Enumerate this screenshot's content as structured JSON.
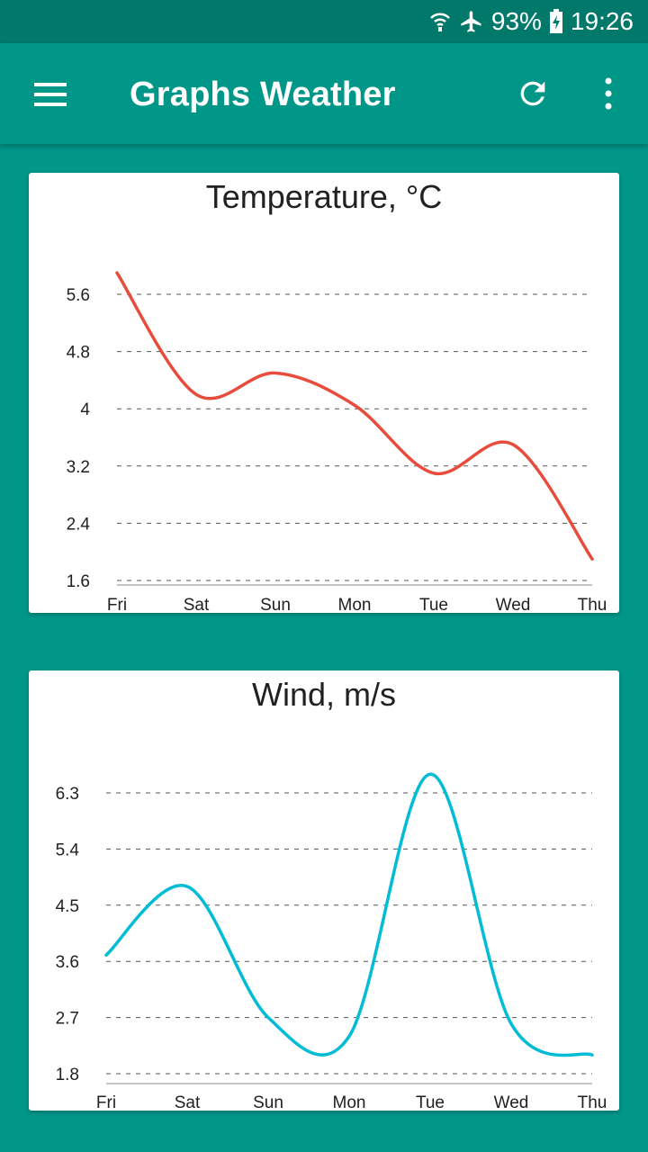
{
  "status_bar": {
    "battery": "93%",
    "time": "19:26",
    "icons": [
      "wifi-icon",
      "airplane-icon",
      "battery-charging-icon"
    ]
  },
  "app_bar": {
    "title": "Graphs Weather",
    "icons": [
      "menu-icon",
      "refresh-icon",
      "more-vert-icon"
    ]
  },
  "colors": {
    "primary": "#009688",
    "primary_dark": "#00796B",
    "temperature_line": "#E74C3C",
    "wind_line": "#00BCD4"
  },
  "chart_data": [
    {
      "type": "line",
      "title": "Temperature, °C",
      "categories": [
        "Fri",
        "Sat",
        "Sun",
        "Mon",
        "Tue",
        "Wed",
        "Thu"
      ],
      "yticks": [
        "5.6",
        "4.8",
        "4",
        "3.2",
        "2.4",
        "1.6"
      ],
      "ylim": [
        1.6,
        5.6
      ],
      "series": [
        {
          "values": [
            5.9,
            4.2,
            4.5,
            4.05,
            3.1,
            3.5,
            1.9
          ]
        }
      ],
      "grid": true
    },
    {
      "type": "line",
      "title": "Wind, m/s",
      "categories": [
        "Fri",
        "Sat",
        "Sun",
        "Mon",
        "Tue",
        "Wed",
        "Thu"
      ],
      "yticks": [
        "6.3",
        "5.4",
        "4.5",
        "3.6",
        "2.7",
        "1.8"
      ],
      "ylim": [
        1.8,
        6.3
      ],
      "series": [
        {
          "values": [
            3.7,
            4.8,
            2.7,
            2.4,
            6.6,
            2.6,
            2.1
          ]
        }
      ],
      "grid": true
    }
  ]
}
